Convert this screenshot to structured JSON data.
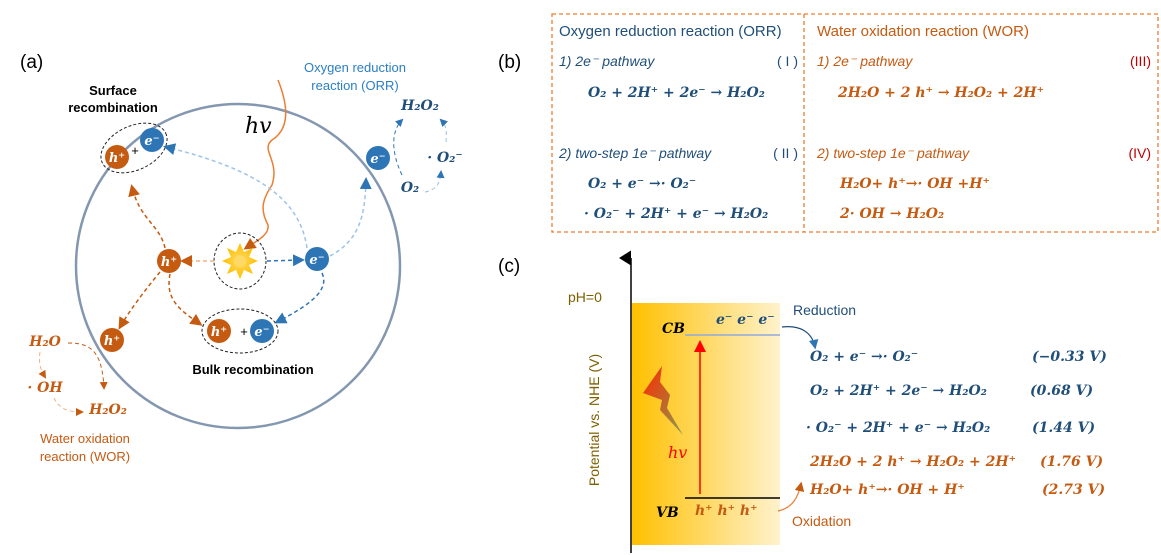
{
  "panel_a": {
    "label": "(a)",
    "surface_recombination": [
      "Surface",
      "recombination"
    ],
    "hv": "hv",
    "orr_label": [
      "Oxygen reduction",
      "reaction (ORR)"
    ],
    "h2o2_orr": "H₂O₂",
    "superoxide": "· O₂⁻",
    "o2": "O₂",
    "hole": "h⁺",
    "electron": "e⁻",
    "plus": "+",
    "bulk_recombination": "Bulk recombination",
    "h2o": "H₂O",
    "oh": "· OH",
    "h2o2_wor": "H₂O₂",
    "wor_label": [
      "Water oxidation",
      "reaction (WOR)"
    ]
  },
  "panel_b": {
    "label": "(b)",
    "orr": {
      "title": "Oxygen reduction reaction (ORR)",
      "path1": "1) 2e⁻ pathway",
      "path1_id": "( I )",
      "eq1": "O₂ + 2H⁺ + 2e⁻ → H₂O₂",
      "path2": "2) two-step 1e⁻ pathway",
      "path2_id": "( II )",
      "eq2a": "O₂ + e⁻ →· O₂⁻",
      "eq2b": "· O₂⁻ + 2H⁺ + e⁻ → H₂O₂"
    },
    "wor": {
      "title": "Water oxidation reaction (WOR)",
      "path1": "1) 2e⁻ pathway",
      "path1_id": "(III)",
      "eq1": "2H₂O + 2 h⁺ → H₂O₂ + 2H⁺",
      "path2": "2) two-step 1e⁻ pathway",
      "path2_id": "(IV)",
      "eq2a": "H₂O+ h⁺→· OH +H⁺",
      "eq2b": "2· OH → H₂O₂"
    }
  },
  "panel_c": {
    "label": "(c)",
    "ph": "pH=0",
    "ylabel": "Potential vs. NHE (V)",
    "cb": "CB",
    "vb": "VB",
    "electrons": "e⁻  e⁻  e⁻",
    "holes": "h⁺   h⁺   h⁺",
    "hv": "hv",
    "reduction": "Reduction",
    "oxidation": "Oxidation",
    "reactions": [
      {
        "eq": "O₂ + e⁻ →· O₂⁻",
        "potential": "(−0.33 V)",
        "type": "reduction"
      },
      {
        "eq": "O₂ + 2H⁺ + 2e⁻ → H₂O₂",
        "potential": "(0.68 V)",
        "type": "reduction"
      },
      {
        "eq": "· O₂⁻ + 2H⁺ + e⁻ → H₂O₂",
        "potential": "(1.44 V)",
        "type": "reduction"
      },
      {
        "eq": "2H₂O + 2 h⁺ → H₂O₂ + 2H⁺",
        "potential": "(1.76 V)",
        "type": "oxidation"
      },
      {
        "eq": "H₂O+ h⁺→· OH + H⁺",
        "potential": "(2.73 V)",
        "type": "oxidation"
      }
    ]
  },
  "colors": {
    "electron": "#2e75b6",
    "hole": "#c55a11",
    "orr_text": "#1f4e79",
    "wor_text": "#c55a11",
    "roman_wor": "#c00000",
    "band_gradient": [
      "#ffc000",
      "#fff2cc"
    ],
    "box_border": "#ed7d31"
  }
}
